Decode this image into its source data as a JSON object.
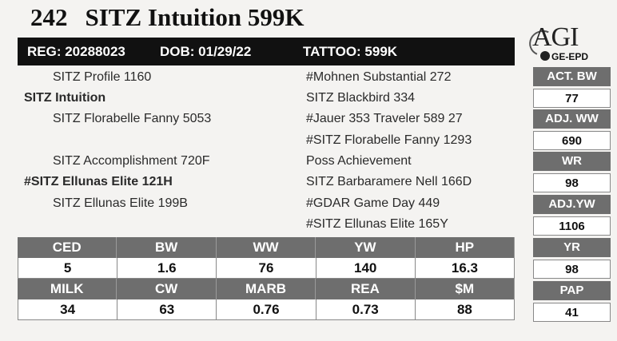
{
  "lot": {
    "number": "242",
    "name": "SITZ Intuition 599K"
  },
  "logo": {
    "main": "AGI",
    "sub": "GE-EPD"
  },
  "registration": {
    "reg": "REG: 20288023",
    "dob": "DOB: 01/29/22",
    "tattoo": "TATTOO: 599K"
  },
  "pedigree": {
    "sire": "SITZ Intuition",
    "sire_sire": "SITZ Profile 1160",
    "sire_dam": "SITZ Florabelle Fanny 5053",
    "dam": "#SITZ Ellunas Elite 121H",
    "dam_sire": "SITZ Accomplishment 720F",
    "dam_dam": "SITZ Ellunas Elite 199B",
    "ss_sire": "#Mohnen Substantial 272",
    "ss_dam": "SITZ Blackbird 334",
    "sd_sire": "#Jauer 353 Traveler 589 27",
    "sd_dam": "#SITZ Florabelle Fanny 1293",
    "ds_sire": "Poss Achievement",
    "ds_dam": "SITZ Barbaramere Nell 166D",
    "dd_sire": "#GDAR Game Day 449",
    "dd_dam": "#SITZ Ellunas Elite 165Y"
  },
  "ratios": [
    {
      "label": "ACT. BW",
      "value": "77"
    },
    {
      "label": "ADJ. WW",
      "value": "690"
    },
    {
      "label": "WR",
      "value": "98"
    },
    {
      "label": "ADJ.YW",
      "value": "1106"
    },
    {
      "label": "YR",
      "value": "98"
    },
    {
      "label": "PAP",
      "value": "41"
    }
  ],
  "epd": {
    "row1_headers": [
      "CED",
      "BW",
      "WW",
      "YW",
      "HP"
    ],
    "row1_values": [
      "5",
      "1.6",
      "76",
      "140",
      "16.3"
    ],
    "row2_headers": [
      "MILK",
      "CW",
      "MARB",
      "REA",
      "$M"
    ],
    "row2_values": [
      "34",
      "63",
      "0.76",
      "0.73",
      "88"
    ]
  }
}
